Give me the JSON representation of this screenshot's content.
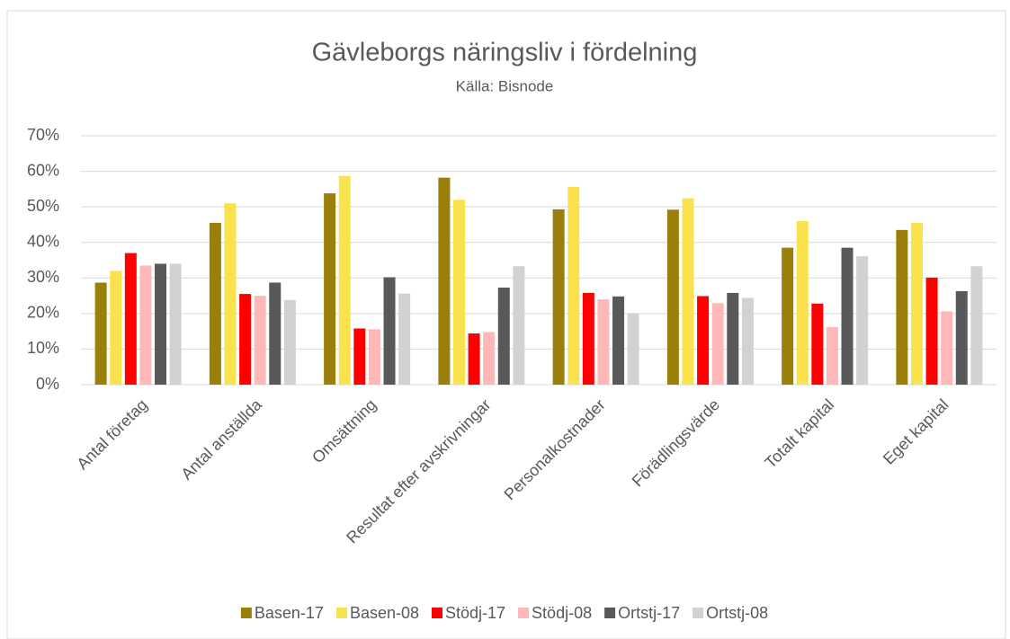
{
  "chart_data": {
    "type": "bar",
    "title": "Gävleborgs näringsliv i fördelning",
    "subtitle": "Källa: Bisnode",
    "categories": [
      "Antal företag",
      "Antal anställda",
      "Omsättning",
      "Resultat efter avskrivningar",
      "Personalkostnader",
      "Förädlingsvärde",
      "Totalt kapital",
      "Eget kapital"
    ],
    "series": [
      {
        "name": "Basen-17",
        "color": "#9a800a",
        "values": [
          28.7,
          45.5,
          53.8,
          58.2,
          49.3,
          49.2,
          38.5,
          43.5
        ]
      },
      {
        "name": "Basen-08",
        "color": "#fae14e",
        "values": [
          32,
          51,
          58.7,
          52,
          55.6,
          52.4,
          46,
          45.5
        ]
      },
      {
        "name": "Stödj-17",
        "color": "#ff0000",
        "values": [
          37,
          25.5,
          15.8,
          14.4,
          25.8,
          24.9,
          22.8,
          30.1
        ]
      },
      {
        "name": "Stödj-08",
        "color": "#ffb8b8",
        "values": [
          33.5,
          25,
          15.6,
          14.8,
          24,
          22.9,
          16.2,
          20.6
        ]
      },
      {
        "name": "Ortstj-17",
        "color": "#595959",
        "values": [
          34,
          28.7,
          30.2,
          27.3,
          24.8,
          25.8,
          38.5,
          26.3
        ]
      },
      {
        "name": "Ortstj-08",
        "color": "#d2d2d2",
        "values": [
          34,
          23.8,
          25.6,
          33.3,
          20.1,
          24.4,
          36.1,
          33.3
        ]
      }
    ],
    "ylim": [
      0,
      70
    ],
    "yticks": [
      {
        "value": 0,
        "label": "0%"
      },
      {
        "value": 10,
        "label": "10%"
      },
      {
        "value": 20,
        "label": "20%"
      },
      {
        "value": 30,
        "label": "30%"
      },
      {
        "value": 40,
        "label": "40%"
      },
      {
        "value": 50,
        "label": "50%"
      },
      {
        "value": 60,
        "label": "60%"
      },
      {
        "value": 70,
        "label": "70%"
      }
    ],
    "grid": true,
    "legend": "bottom"
  }
}
